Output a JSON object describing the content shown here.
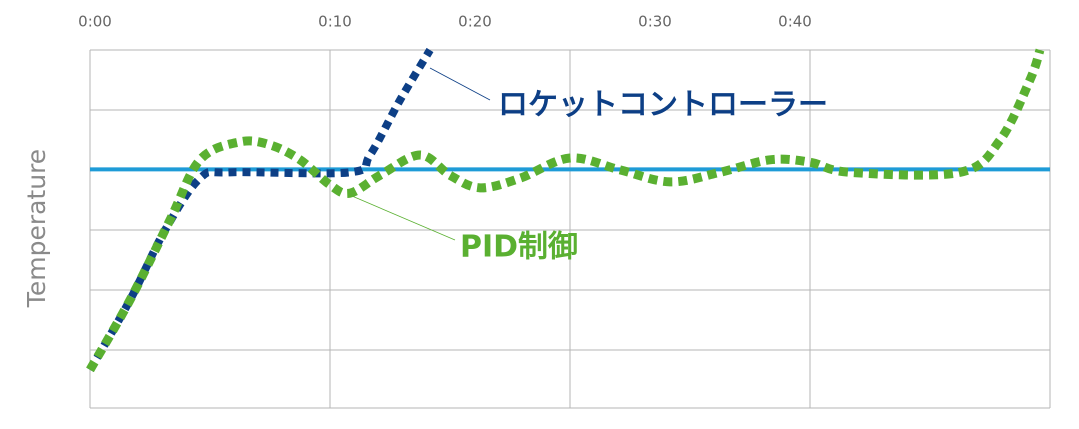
{
  "chart_data": {
    "type": "line",
    "ylabel": "Temperature",
    "xlim": [
      0,
      48
    ],
    "ylim": [
      0,
      6
    ],
    "xticks": [
      {
        "value": 0,
        "label": "0:00"
      },
      {
        "value": 12,
        "label": "0:10"
      },
      {
        "value": 19,
        "label": "0:20"
      },
      {
        "value": 28,
        "label": "0:30"
      },
      {
        "value": 35,
        "label": "0:40"
      }
    ],
    "series": [
      {
        "color": "#1e9bd7",
        "x": [
          0,
          48
        ],
        "values": [
          4,
          4
        ]
      },
      {
        "name": "ロケットコントローラー",
        "color": "#0d3f86",
        "x": [
          0,
          2,
          3.75,
          5.5,
          7,
          13,
          14,
          15.5,
          17
        ],
        "values": [
          0.64,
          1.81,
          2.98,
          3.85,
          3.95,
          3.95,
          4.24,
          5.16,
          6.0
        ]
      },
      {
        "name": "PID制御",
        "color": "#5ab031",
        "x": [
          0,
          2,
          4,
          5.5,
          7.5,
          9,
          10.5,
          12,
          13,
          14.5,
          16.5,
          18,
          19.5,
          21.5,
          24,
          26.5,
          29,
          31.5,
          34,
          36,
          38,
          43.5,
          45.5,
          47,
          47.5
        ],
        "values": [
          0.64,
          1.81,
          3.15,
          4.16,
          4.46,
          4.41,
          4.16,
          3.74,
          3.6,
          3.9,
          4.24,
          3.9,
          3.69,
          3.85,
          4.19,
          3.99,
          3.79,
          3.95,
          4.16,
          4.12,
          3.95,
          3.95,
          4.49,
          5.5,
          6.0
        ]
      }
    ]
  }
}
